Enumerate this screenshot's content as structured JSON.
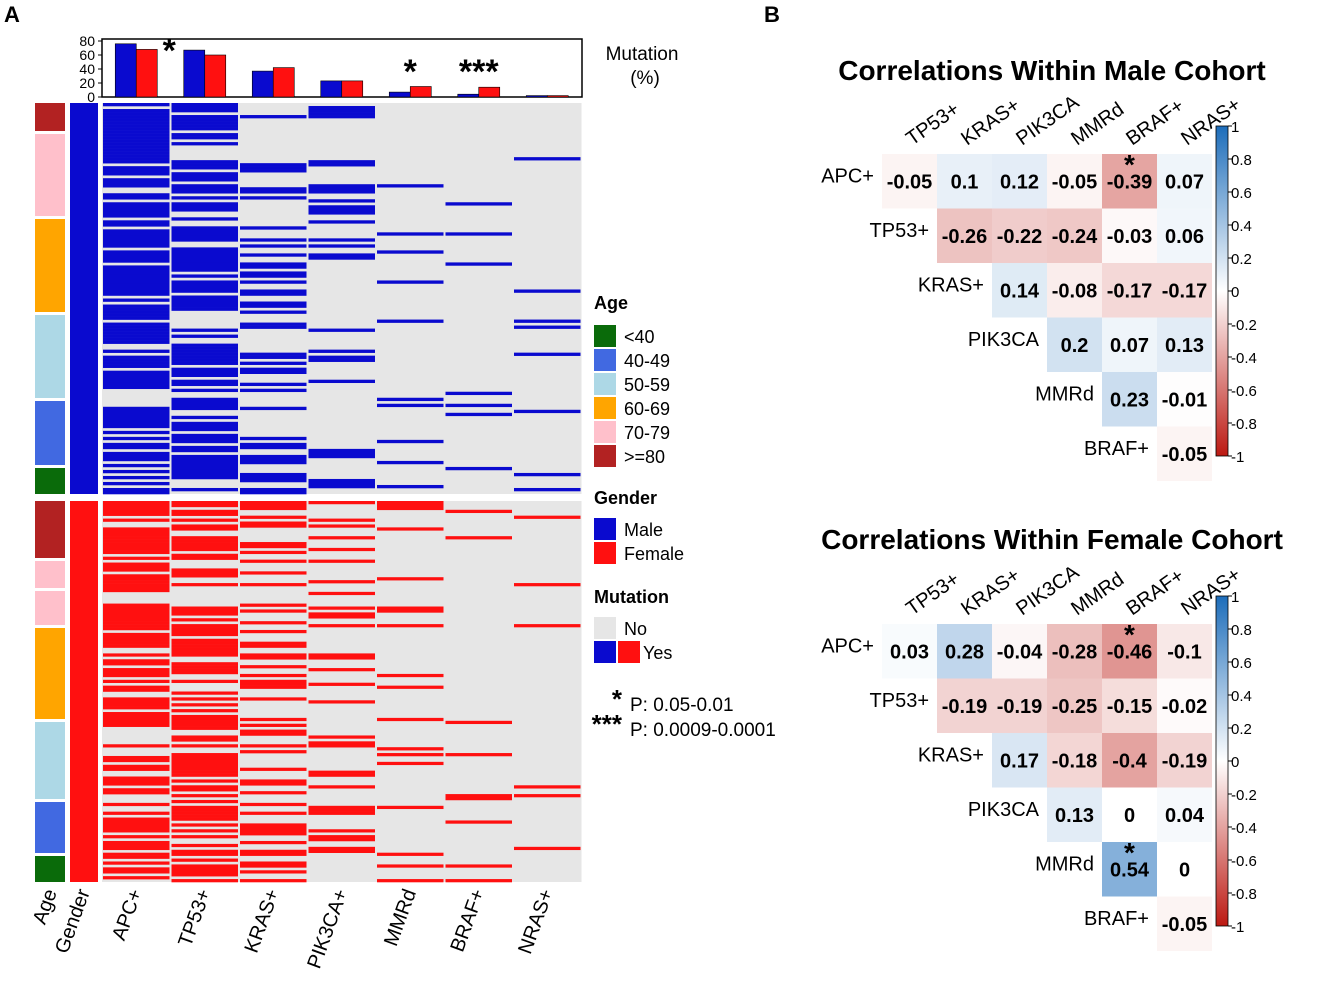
{
  "panel_labels": [
    "A",
    "B"
  ],
  "colors": {
    "male": "#0a0acf",
    "female": "#ff1010",
    "no": "#e6e6e6",
    "age_lt40": "#0a6b0a",
    "age_40_49": "#4169e1",
    "age_50_59": "#add8e6",
    "age_60_69": "#ffa500",
    "age_70_79": "#ffc0cb",
    "age_ge80": "#b22222",
    "neg": "#c94741",
    "pos": "#4a8ac8"
  },
  "panel_a": {
    "bar_axis_ticks": [
      "0",
      "20",
      "40",
      "60",
      "80"
    ],
    "bar_axis_title_line1": "Mutation",
    "bar_axis_title_line2": "(%)",
    "annotation_col_labels": [
      "Age",
      "Gender"
    ],
    "gene_labels": [
      "APC+",
      "TP53+",
      "KRAS+",
      "PIK3CA+",
      "MMRd",
      "BRAF+",
      "NRAS+"
    ],
    "stars": [
      {
        "gene": "APC+",
        "text": "*"
      },
      {
        "gene": "MMRd",
        "text": "*"
      },
      {
        "gene": "BRAF+",
        "text": "***"
      }
    ],
    "legend": {
      "age_title": "Age",
      "age_items": [
        "<40",
        "40-49",
        "50-59",
        "60-69",
        "70-79",
        ">=80"
      ],
      "gender_title": "Gender",
      "gender_items": [
        "Male",
        "Female"
      ],
      "mutation_title": "Mutation",
      "mutation_items": [
        "No",
        "Yes"
      ],
      "sig": [
        {
          "sym": "*",
          "text": "P: 0.05-0.01"
        },
        {
          "sym": "***",
          "text": "P: 0.0009-0.0001"
        }
      ]
    }
  },
  "chart_data": [
    {
      "type": "bar",
      "title": "",
      "ylabel": "Mutation (%)",
      "ylim": [
        0,
        80
      ],
      "categories": [
        "APC+",
        "TP53+",
        "KRAS+",
        "PIK3CA+",
        "MMRd",
        "BRAF+",
        "NRAS+"
      ],
      "series": [
        {
          "name": "Male",
          "values": [
            76,
            67,
            37,
            23,
            7,
            4,
            2
          ]
        },
        {
          "name": "Female",
          "values": [
            68,
            60,
            42,
            23,
            15,
            14,
            2
          ]
        }
      ]
    },
    {
      "type": "heatmap",
      "title": "Correlations Within Male Cohort",
      "rows": [
        "APC+",
        "TP53+",
        "KRAS+",
        "PIK3CA",
        "MMRd",
        "BRAF+"
      ],
      "cols": [
        "TP53+",
        "KRAS+",
        "PIK3CA",
        "MMRd",
        "BRAF+",
        "NRAS+"
      ],
      "values": [
        [
          -0.05,
          0.1,
          0.12,
          -0.05,
          -0.39,
          0.07
        ],
        [
          null,
          -0.26,
          -0.22,
          -0.24,
          -0.03,
          0.06
        ],
        [
          null,
          null,
          0.14,
          -0.08,
          -0.17,
          -0.17
        ],
        [
          null,
          null,
          null,
          0.2,
          0.07,
          0.13
        ],
        [
          null,
          null,
          null,
          null,
          0.23,
          -0.01
        ],
        [
          null,
          null,
          null,
          null,
          null,
          -0.05
        ]
      ],
      "labels": [
        [
          "-0.05",
          "0.1",
          "0.12",
          "-0.05",
          "-0.39",
          "0.07"
        ],
        [
          "",
          "-0.26",
          "-0.22",
          "-0.24",
          "-0.03",
          "0.06"
        ],
        [
          "",
          "",
          "0.14",
          "-0.08",
          "-0.17",
          "-0.17"
        ],
        [
          "",
          "",
          "",
          "0.2",
          "0.07",
          "0.13"
        ],
        [
          "",
          "",
          "",
          "",
          "0.23",
          "-0.01"
        ],
        [
          "",
          "",
          "",
          "",
          "",
          "-0.05"
        ]
      ],
      "stars": [
        [
          0,
          4
        ]
      ],
      "colorbar_ticks": [
        "1",
        "0.8",
        "0.6",
        "0.4",
        "0.2",
        "0",
        "-0.2",
        "-0.4",
        "-0.6",
        "-0.8",
        "-1"
      ]
    },
    {
      "type": "heatmap",
      "title": "Correlations Within Female Cohort",
      "rows": [
        "APC+",
        "TP53+",
        "KRAS+",
        "PIK3CA",
        "MMRd",
        "BRAF+"
      ],
      "cols": [
        "TP53+",
        "KRAS+",
        "PIK3CA",
        "MMRd",
        "BRAF+",
        "NRAS+"
      ],
      "values": [
        [
          0.03,
          0.28,
          -0.04,
          -0.28,
          -0.46,
          -0.1
        ],
        [
          null,
          -0.19,
          -0.19,
          -0.25,
          -0.15,
          -0.02
        ],
        [
          null,
          null,
          0.17,
          -0.18,
          -0.4,
          -0.19
        ],
        [
          null,
          null,
          null,
          0.13,
          0,
          0.04
        ],
        [
          null,
          null,
          null,
          null,
          0.54,
          0
        ],
        [
          null,
          null,
          null,
          null,
          null,
          -0.05
        ]
      ],
      "labels": [
        [
          "0.03",
          "0.28",
          "-0.04",
          "-0.28",
          "-0.46",
          "-0.1"
        ],
        [
          "",
          "-0.19",
          "-0.19",
          "-0.25",
          "-0.15",
          "-0.02"
        ],
        [
          "",
          "",
          "0.17",
          "-0.18",
          "-0.4",
          "-0.19"
        ],
        [
          "",
          "",
          "",
          "0.13",
          "0",
          "0.04"
        ],
        [
          "",
          "",
          "",
          "",
          "0.54",
          "0"
        ],
        [
          "",
          "",
          "",
          "",
          "",
          "-0.05"
        ]
      ],
      "stars": [
        [
          0,
          4
        ],
        [
          4,
          4
        ]
      ],
      "colorbar_ticks": [
        "1",
        "0.8",
        "0.6",
        "0.4",
        "0.2",
        "0",
        "-0.2",
        "-0.4",
        "-0.6",
        "-0.8",
        "-1"
      ]
    }
  ]
}
